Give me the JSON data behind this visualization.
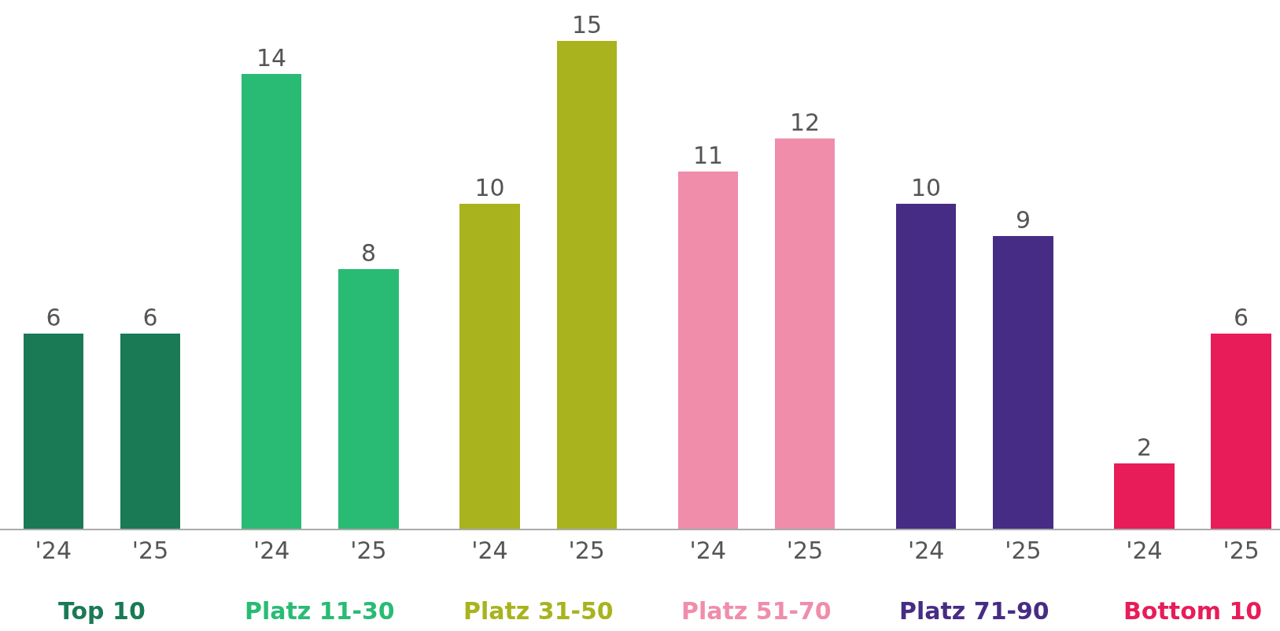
{
  "chart_data": {
    "type": "bar",
    "categories": [
      "'24",
      "'25",
      "'24",
      "'25",
      "'24",
      "'25",
      "'24",
      "'25",
      "'24",
      "'25",
      "'24",
      "'25"
    ],
    "values": [
      6,
      6,
      14,
      8,
      10,
      15,
      11,
      12,
      10,
      9,
      2,
      6
    ],
    "colors": [
      "#1a7a56",
      "#1a7a56",
      "#29bb74",
      "#29bb74",
      "#a8b31e",
      "#a8b31e",
      "#f08dab",
      "#f08dab",
      "#472c85",
      "#472c85",
      "#e81c58",
      "#e81c58"
    ],
    "data_labels": true,
    "annotations": [
      "Top 10",
      "Platz 11-30",
      "Platz 31-50",
      "Platz 51-70",
      "Platz 71-90",
      "Bottom 10"
    ]
  }
}
